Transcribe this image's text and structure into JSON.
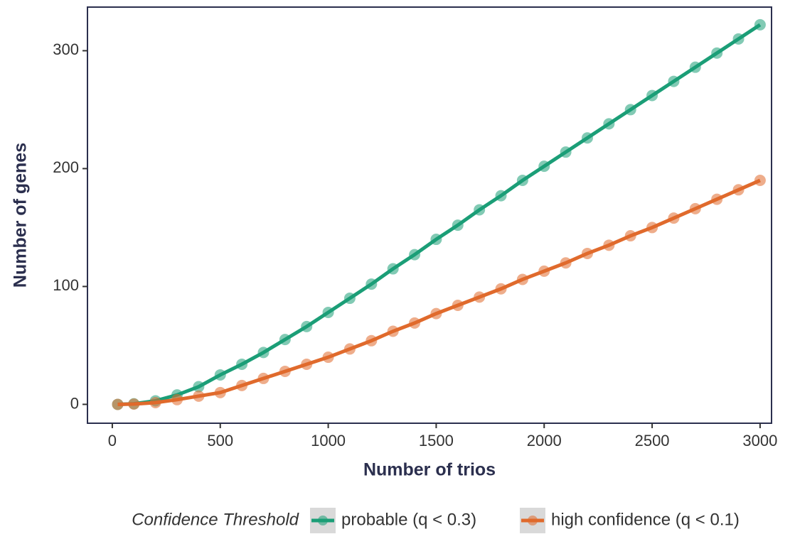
{
  "chart_data": {
    "type": "line",
    "x_label": "Number of trios",
    "y_label": "Number of genes",
    "legend_title": "Confidence Threshold",
    "legend_position": "bottom",
    "x": [
      25,
      100,
      200,
      300,
      400,
      500,
      600,
      700,
      800,
      900,
      1000,
      1100,
      1200,
      1300,
      1400,
      1500,
      1600,
      1700,
      1800,
      1900,
      2000,
      2100,
      2200,
      2300,
      2400,
      2500,
      2600,
      2700,
      2800,
      2900,
      3000
    ],
    "series": [
      {
        "name": "probable (q < 0.3)",
        "color": "#1b9e77",
        "values": [
          0,
          0.5,
          3,
          8,
          15,
          25,
          34,
          44,
          55,
          66,
          78,
          90,
          102,
          115,
          127,
          140,
          152,
          165,
          177,
          190,
          202,
          214,
          226,
          238,
          250,
          262,
          274,
          286,
          298,
          310,
          322
        ]
      },
      {
        "name": "high confidence (q < 0.1)",
        "color": "#e06a2c",
        "values": [
          0,
          0.3,
          1.5,
          4,
          7,
          10,
          16,
          22,
          28,
          34,
          40,
          47,
          54,
          62,
          69,
          77,
          84,
          91,
          98,
          106,
          113,
          120,
          128,
          135,
          143,
          150,
          158,
          166,
          174,
          182,
          190
        ]
      }
    ],
    "xlim": [
      -115,
      3053
    ],
    "ylim": [
      -16,
      337
    ],
    "xticks": [
      0,
      500,
      1000,
      1500,
      2000,
      2500,
      3000
    ],
    "yticks": [
      0,
      100,
      200,
      300
    ]
  }
}
